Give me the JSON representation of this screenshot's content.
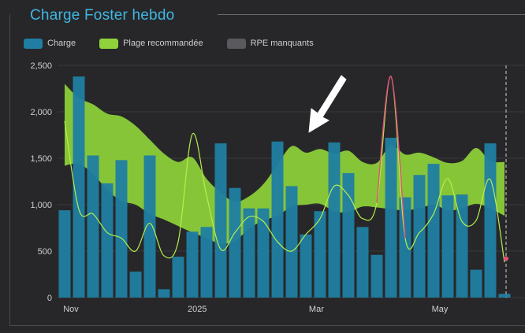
{
  "colors": {
    "charge": "#1f7ea1",
    "band": "#8fd33a",
    "band_line": "#b4ef4e",
    "missing": "#5a5a5e",
    "spike": "#e0507a",
    "grid": "#38383b",
    "text": "#cfcfd2"
  },
  "title": "Charge Foster hebdo",
  "legend": [
    {
      "label": "Charge",
      "color": "#1f7ea1"
    },
    {
      "label": "Plage recommandée",
      "color": "#8fd33a"
    },
    {
      "label": "RPE manquants",
      "color": "#5a5a5e"
    }
  ],
  "chart_data": {
    "type": "bar",
    "title": "Charge Foster hebdo",
    "ylim": [
      0,
      2500
    ],
    "yticks": [
      0,
      500,
      1000,
      1500,
      2000,
      2500
    ],
    "y_tick_labels": [
      "0",
      "500",
      "1,000",
      "1,500",
      "2,000",
      "2,500"
    ],
    "x_tick_labels": [
      {
        "label": "Nov",
        "week": 1
      },
      {
        "label": "2025",
        "week": 9.9
      },
      {
        "label": "Mar",
        "week": 18.3
      },
      {
        "label": "May",
        "week": 27
      }
    ],
    "grid": true,
    "legend_position": "top-left",
    "series": [
      {
        "name": "Charge",
        "type": "bar",
        "values": [
          940,
          2380,
          1530,
          1230,
          1480,
          280,
          1530,
          90,
          440,
          710,
          760,
          1660,
          1180,
          960,
          960,
          1680,
          1200,
          680,
          930,
          1670,
          1340,
          760,
          460,
          1720,
          1080,
          1320,
          1440,
          1100,
          1110,
          300,
          1660,
          40
        ]
      },
      {
        "name": "Plage recommandée",
        "type": "area-band",
        "upper": [
          2300,
          2150,
          2080,
          1980,
          1950,
          1850,
          1700,
          1550,
          1460,
          1510,
          1280,
          1130,
          1030,
          1090,
          1220,
          1430,
          1630,
          1560,
          1600,
          1550,
          1580,
          1460,
          1450,
          1640,
          1540,
          1560,
          1510,
          1450,
          1470,
          1610,
          1470,
          1460
        ],
        "lower": [
          1420,
          1440,
          1330,
          1160,
          1040,
          1000,
          900,
          840,
          770,
          700,
          640,
          580,
          610,
          740,
          830,
          880,
          980,
          1000,
          1010,
          930,
          920,
          980,
          970,
          950,
          940,
          960,
          1000,
          940,
          960,
          1010,
          960,
          880
        ]
      },
      {
        "type": "line",
        "values": [
          1900,
          950,
          900,
          700,
          640,
          500,
          800,
          450,
          600,
          1760,
          1100,
          520,
          700,
          870,
          820,
          600,
          500,
          680,
          850,
          1200,
          1100,
          850,
          1020,
          2380,
          640,
          700,
          900,
          1280,
          820,
          830,
          1270,
          380
        ]
      }
    ]
  }
}
